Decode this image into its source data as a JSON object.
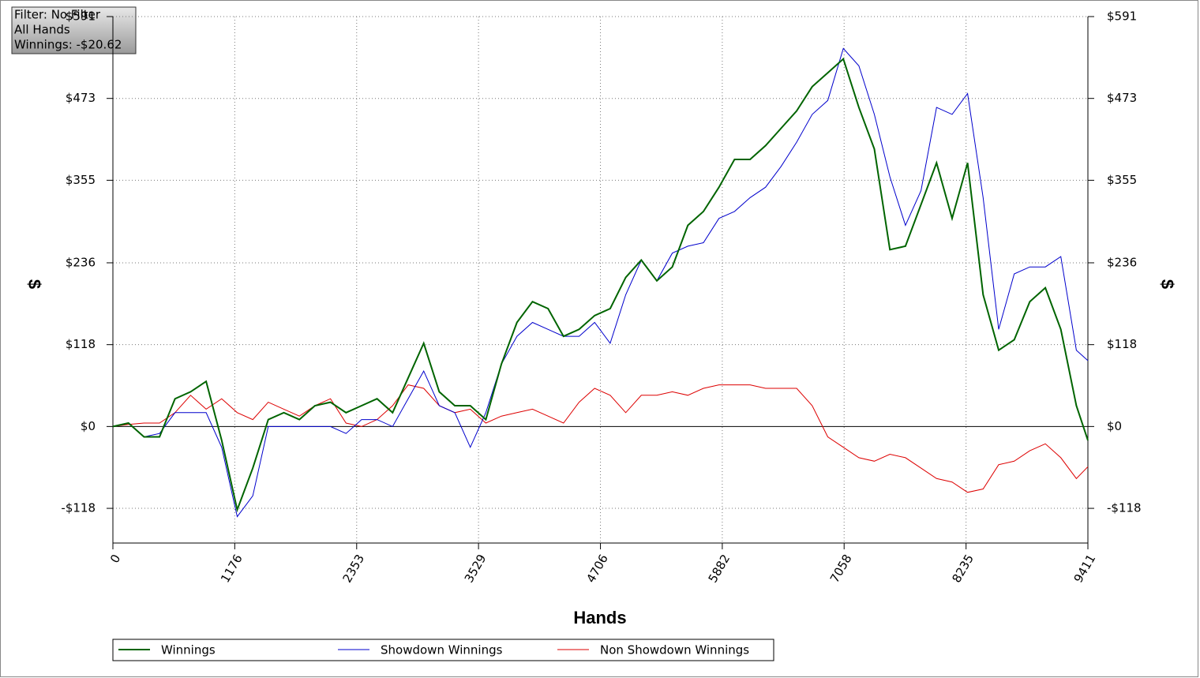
{
  "chart_data": {
    "type": "line",
    "info": [
      "Filter: No Filter",
      "All Hands",
      "Winnings: -$20.62"
    ],
    "xlabel": "Hands",
    "ylabel": "$",
    "xlim": [
      0,
      9411
    ],
    "xticks": [
      0,
      1176,
      2353,
      3529,
      4706,
      5882,
      7058,
      8235,
      9411
    ],
    "ylim": [
      -168,
      591
    ],
    "yticks": [
      {
        "value": -118,
        "label": "-$118"
      },
      {
        "value": 0,
        "label": "$0"
      },
      {
        "value": 118,
        "label": "$118"
      },
      {
        "value": 236,
        "label": "$236"
      },
      {
        "value": 355,
        "label": "$355"
      },
      {
        "value": 473,
        "label": "$473"
      },
      {
        "value": 591,
        "label": "$591"
      }
    ],
    "grid": true,
    "legend": "bottom",
    "x": [
      0,
      150,
      300,
      450,
      600,
      750,
      900,
      1050,
      1200,
      1350,
      1500,
      1650,
      1800,
      1950,
      2100,
      2250,
      2400,
      2550,
      2700,
      2850,
      3000,
      3150,
      3300,
      3450,
      3600,
      3750,
      3900,
      4050,
      4200,
      4350,
      4500,
      4650,
      4800,
      4950,
      5100,
      5250,
      5400,
      5550,
      5700,
      5850,
      6000,
      6150,
      6300,
      6450,
      6600,
      6750,
      6900,
      7050,
      7200,
      7350,
      7500,
      7650,
      7800,
      7950,
      8100,
      8250,
      8400,
      8550,
      8700,
      8850,
      9000,
      9150,
      9300,
      9411
    ],
    "series": [
      {
        "name": "Winnings",
        "color": "#006400",
        "values": [
          0,
          5,
          -15,
          -15,
          40,
          50,
          65,
          -20,
          -120,
          -60,
          10,
          20,
          10,
          30,
          35,
          20,
          30,
          40,
          20,
          70,
          120,
          50,
          30,
          30,
          10,
          90,
          150,
          180,
          170,
          130,
          140,
          160,
          170,
          215,
          240,
          210,
          230,
          290,
          310,
          345,
          385,
          385,
          405,
          430,
          455,
          490,
          510,
          530,
          460,
          400,
          255,
          260,
          320,
          380,
          300,
          380,
          190,
          110,
          125,
          180,
          200,
          140,
          30,
          -20
        ]
      },
      {
        "name": "Showdown Winnings",
        "color": "#0000cc",
        "values": [
          0,
          5,
          -15,
          -10,
          20,
          20,
          20,
          -30,
          -130,
          -100,
          0,
          0,
          0,
          0,
          0,
          -10,
          10,
          10,
          0,
          40,
          80,
          30,
          20,
          -30,
          20,
          90,
          130,
          150,
          140,
          130,
          130,
          150,
          120,
          190,
          240,
          210,
          250,
          260,
          265,
          300,
          310,
          330,
          345,
          375,
          410,
          450,
          470,
          545,
          520,
          450,
          360,
          290,
          340,
          460,
          450,
          480,
          330,
          140,
          220,
          230,
          230,
          245,
          110,
          95
        ]
      },
      {
        "name": "Non Showdown Winnings",
        "color": "#dd0000",
        "values": [
          0,
          3,
          5,
          5,
          20,
          45,
          25,
          40,
          20,
          10,
          35,
          25,
          15,
          30,
          40,
          5,
          0,
          10,
          30,
          60,
          55,
          30,
          20,
          25,
          5,
          15,
          20,
          25,
          15,
          5,
          35,
          55,
          45,
          20,
          45,
          45,
          50,
          45,
          55,
          60,
          60,
          60,
          55,
          55,
          55,
          30,
          -15,
          -30,
          -45,
          -50,
          -40,
          -45,
          -60,
          -75,
          -80,
          -95,
          -90,
          -55,
          -50,
          -35,
          -25,
          -45,
          -75,
          -58
        ]
      }
    ]
  }
}
